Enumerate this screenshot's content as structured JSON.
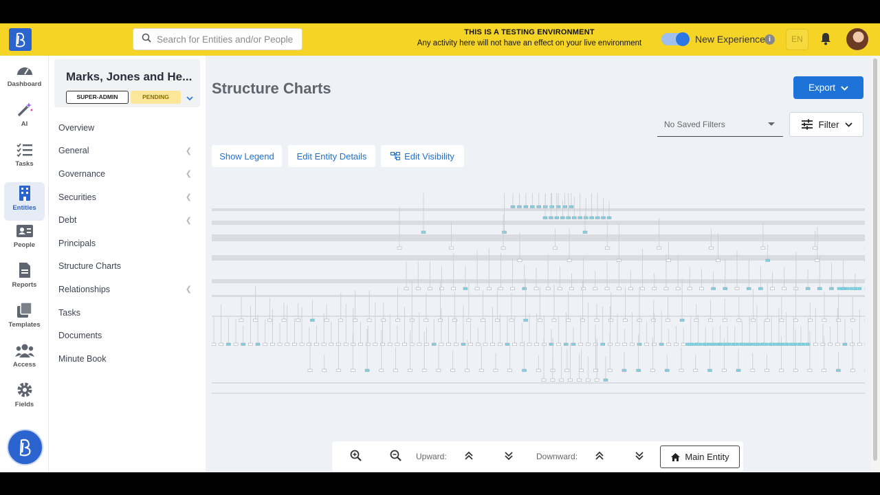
{
  "topbar": {
    "search_placeholder": "Search for Entities and/or People",
    "env_title": "THIS IS A TESTING ENVIRONMENT",
    "env_subtitle": "Any activity here will not have an effect on your live environment",
    "new_experience_label": "New Experience",
    "new_experience_on": true,
    "language": "EN",
    "icons": [
      "logo-icon",
      "search-icon",
      "info-icon",
      "bell-icon",
      "avatar"
    ]
  },
  "rail": {
    "items": [
      {
        "label": "Dashboard",
        "icon": "gauge-icon"
      },
      {
        "label": "AI",
        "icon": "magic-wand-icon"
      },
      {
        "label": "Tasks",
        "icon": "checklist-icon"
      },
      {
        "label": "Entities",
        "icon": "building-icon",
        "active": true
      },
      {
        "label": "People",
        "icon": "contact-card-icon"
      },
      {
        "label": "Reports",
        "icon": "document-icon"
      },
      {
        "label": "Templates",
        "icon": "copy-icon"
      },
      {
        "label": "Access",
        "icon": "users-icon"
      },
      {
        "label": "Fields",
        "icon": "gear-icon"
      }
    ]
  },
  "entity": {
    "name": "Marks, Jones and He...",
    "role_badge": "SUPER-ADMIN",
    "status_badge": "PENDING"
  },
  "nav": {
    "items": [
      {
        "label": "Overview",
        "has_children": false
      },
      {
        "label": "General",
        "has_children": true
      },
      {
        "label": "Governance",
        "has_children": true
      },
      {
        "label": "Securities",
        "has_children": true
      },
      {
        "label": "Debt",
        "has_children": true
      },
      {
        "label": "Principals",
        "has_children": false
      },
      {
        "label": "Structure Charts",
        "has_children": false
      },
      {
        "label": "Relationships",
        "has_children": true
      },
      {
        "label": "Tasks",
        "has_children": false
      },
      {
        "label": "Documents",
        "has_children": false
      },
      {
        "label": "Minute Book",
        "has_children": false
      }
    ]
  },
  "main": {
    "title": "Structure Charts",
    "export_label": "Export",
    "saved_filters_placeholder": "No Saved Filters",
    "filter_label": "Filter",
    "toolbar": {
      "show_legend": "Show Legend",
      "edit_entity_details": "Edit Entity Details",
      "edit_visibility": "Edit Visibility"
    }
  },
  "zoombar": {
    "upward_label": "Upward:",
    "downward_label": "Downward:",
    "main_entity_label": "Main Entity"
  },
  "colors": {
    "brand_blue": "#2b64cf",
    "topbar_yellow": "#f5d426",
    "action_blue": "#1d73d8",
    "node_highlight": "#7fd0e0"
  }
}
